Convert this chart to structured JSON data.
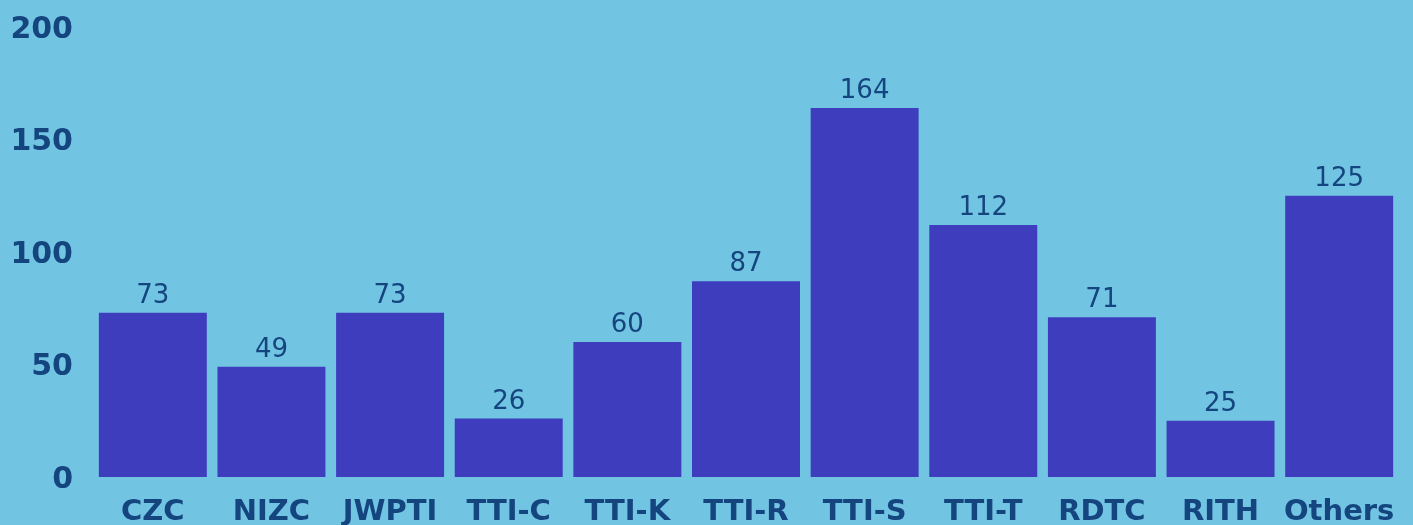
{
  "chart_data": {
    "type": "bar",
    "categories": [
      "CZC",
      "NIZC",
      "JWPTI",
      "TTI-C",
      "TTI-K",
      "TTI-R",
      "TTI-S",
      "TTI-T",
      "RDTC",
      "RITH",
      "Others"
    ],
    "values": [
      73,
      49,
      73,
      26,
      60,
      87,
      164,
      112,
      71,
      25,
      125
    ],
    "color": "#3d3dbd",
    "ylim": [
      0,
      200
    ],
    "yticks": [
      0,
      50,
      100,
      150,
      200
    ],
    "data_labels": true,
    "grid": false
  }
}
